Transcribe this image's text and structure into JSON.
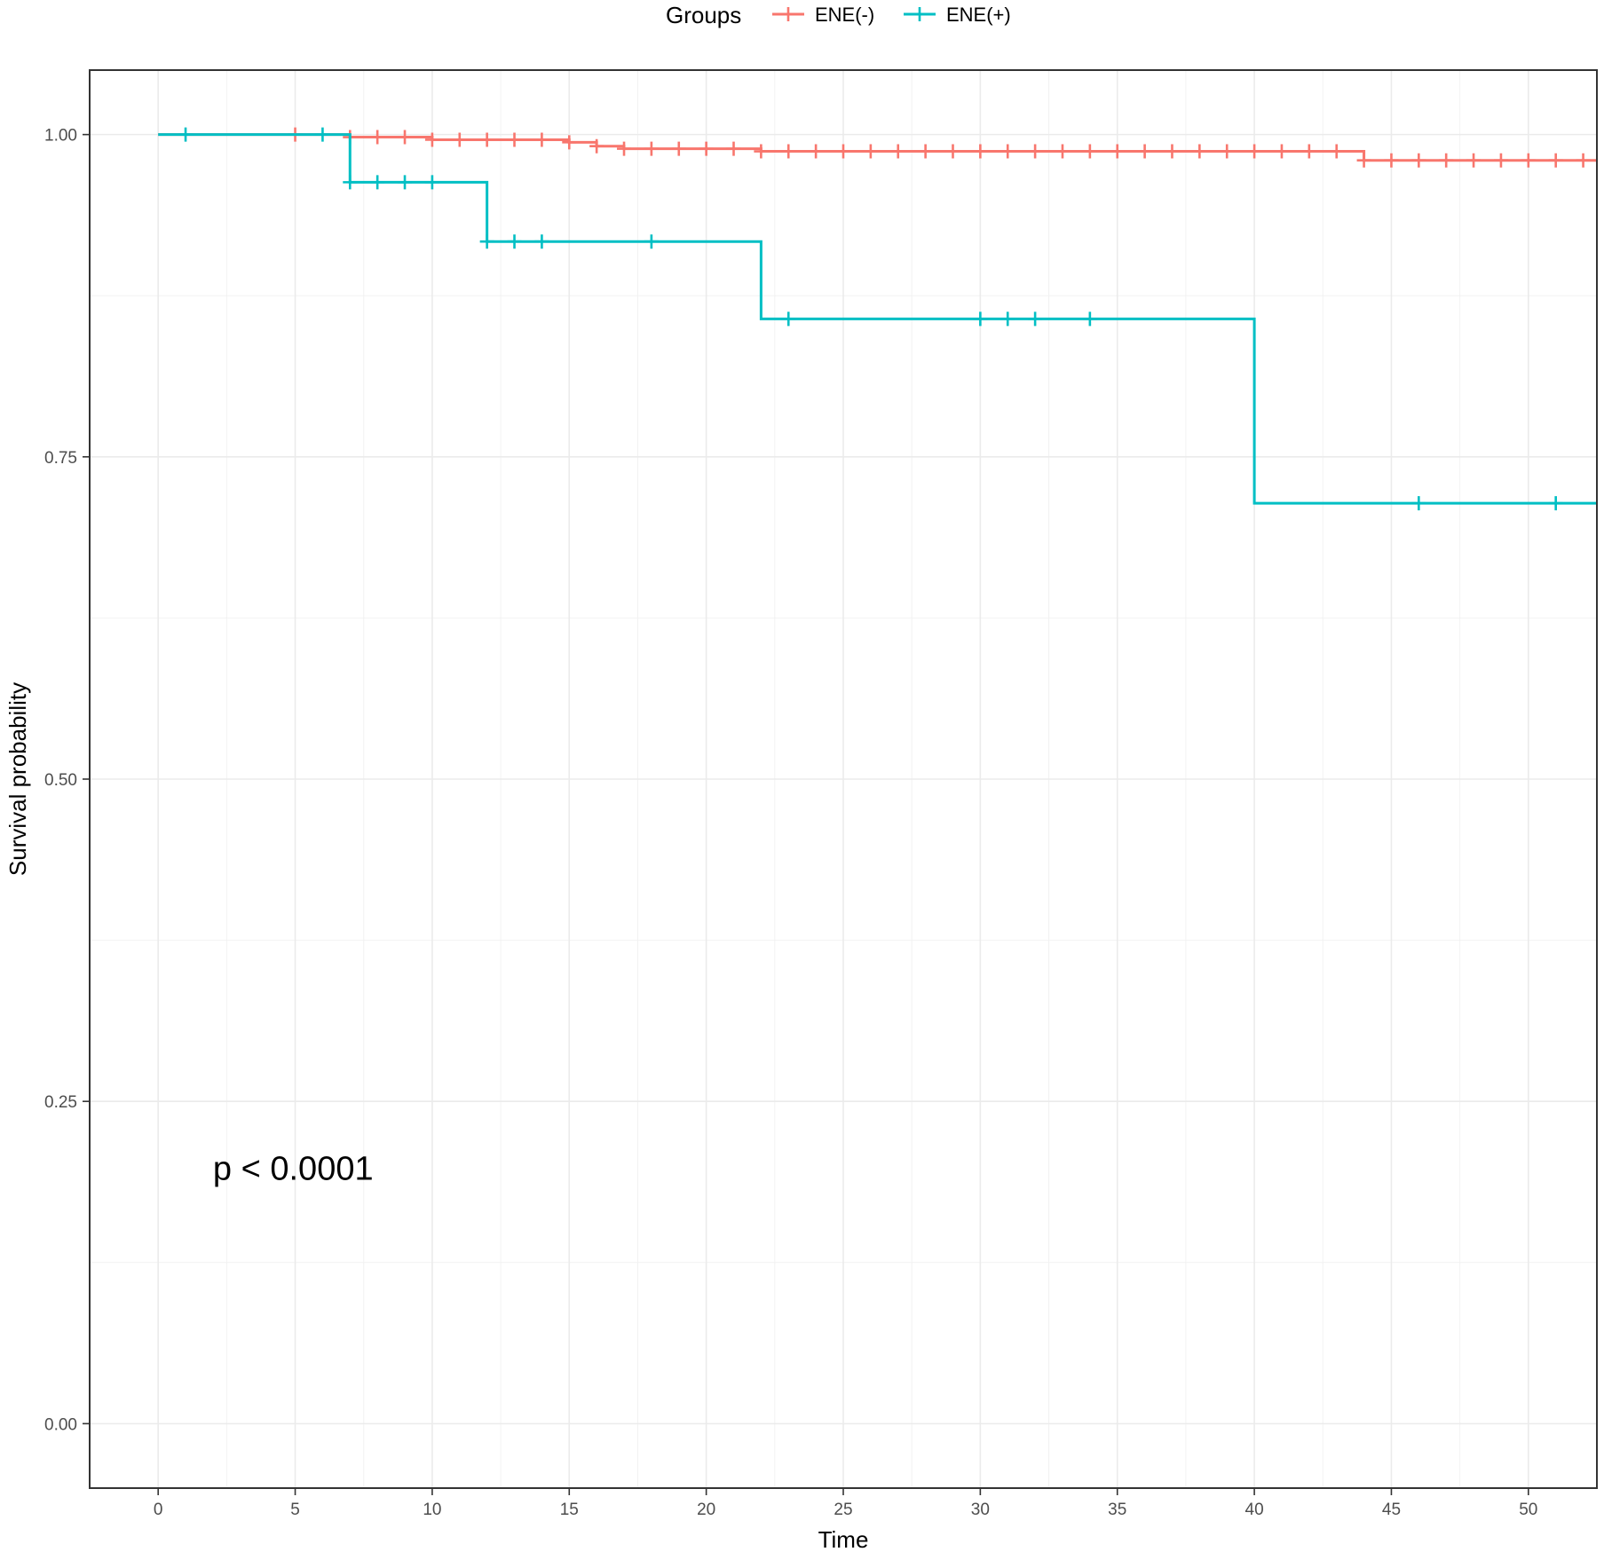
{
  "chart_data": {
    "type": "line",
    "step": true,
    "xlabel": "Time",
    "ylabel": "Survival probability",
    "xlim": [
      -2.5,
      52.5
    ],
    "ylim": [
      -0.05,
      1.05
    ],
    "x_ticks": [
      0,
      5,
      10,
      15,
      20,
      25,
      30,
      35,
      40,
      45,
      50
    ],
    "x_tick_labels": [
      "0",
      "5",
      "10",
      "15",
      "20",
      "25",
      "30",
      "35",
      "40",
      "45",
      "50"
    ],
    "y_ticks": [
      0,
      0.25,
      0.5,
      0.75,
      1.0
    ],
    "y_tick_labels": [
      "0.00",
      "0.25",
      "0.50",
      "0.75",
      "1.00"
    ],
    "grid": true,
    "legend": {
      "title": "Groups",
      "position": "top"
    },
    "annotations": [
      {
        "text": "p < 0.0001",
        "x": 2,
        "y": 0.198
      }
    ],
    "series": [
      {
        "name": "ENE(-)",
        "color": "#F8766D",
        "steps": [
          [
            0,
            1.0
          ],
          [
            7,
            0.998
          ],
          [
            10,
            0.996
          ],
          [
            15,
            0.994
          ],
          [
            16,
            0.991
          ],
          [
            17,
            0.989
          ],
          [
            22,
            0.987
          ],
          [
            44,
            0.98
          ],
          [
            52.5,
            0.98
          ]
        ],
        "censor_times": [
          5,
          7,
          8,
          9,
          10,
          11,
          12,
          13,
          14,
          15,
          16,
          17,
          18,
          19,
          20,
          21,
          22,
          23,
          24,
          25,
          26,
          27,
          28,
          29,
          30,
          31,
          32,
          33,
          34,
          35,
          36,
          37,
          38,
          39,
          40,
          41,
          42,
          43,
          44,
          45,
          46,
          47,
          48,
          49,
          50,
          51,
          52
        ]
      },
      {
        "name": "ENE(+)",
        "color": "#00BFC4",
        "steps": [
          [
            0,
            1.0
          ],
          [
            7,
            0.963
          ],
          [
            12,
            0.917
          ],
          [
            22,
            0.857
          ],
          [
            40,
            0.714
          ],
          [
            52.5,
            0.714
          ]
        ],
        "censor_times": [
          1,
          6,
          7,
          8,
          9,
          10,
          12,
          13,
          14,
          18,
          23,
          30,
          31,
          32,
          34,
          46,
          51
        ]
      }
    ]
  }
}
